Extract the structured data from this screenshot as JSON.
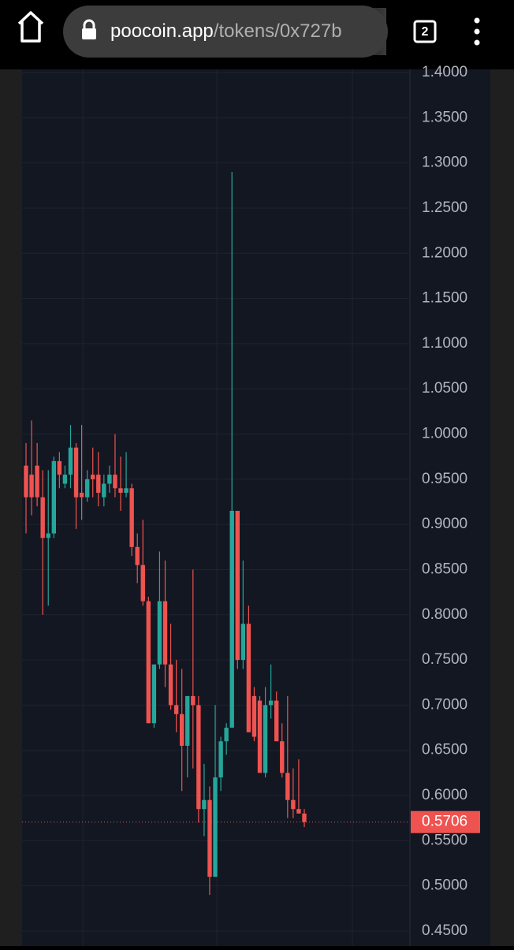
{
  "browser": {
    "url_host": "poocoin.app",
    "url_path": "/tokens/0x727b",
    "tab_count": "2"
  },
  "chart_data": {
    "type": "candlestick",
    "up_color": "#26a69a",
    "down_color": "#ef5350",
    "open": [
      0.965,
      0.955,
      0.965,
      0.93,
      0.885,
      0.89,
      0.97,
      0.945,
      0.955,
      0.985,
      0.935,
      0.93,
      0.955,
      0.955,
      0.93,
      0.945,
      0.955,
      0.94,
      0.935,
      0.94,
      0.875,
      0.855,
      0.815,
      0.68,
      0.745,
      0.815,
      0.745,
      0.7,
      0.69,
      0.655,
      0.71,
      0.7,
      0.585,
      0.595,
      0.51,
      0.62,
      0.66,
      0.675,
      0.915,
      0.75,
      0.79,
      0.71,
      0.705,
      0.625,
      0.7,
      0.705,
      0.66,
      0.625,
      0.595,
      0.585,
      0.58
    ],
    "high": [
      0.99,
      1.015,
      0.99,
      0.96,
      0.96,
      0.975,
      0.98,
      0.965,
      1.01,
      0.99,
      1.01,
      0.96,
      0.985,
      0.98,
      0.955,
      0.965,
      1.0,
      0.975,
      0.98,
      0.945,
      0.89,
      0.905,
      0.82,
      0.745,
      0.87,
      0.86,
      0.79,
      0.75,
      0.74,
      0.71,
      0.85,
      0.71,
      0.635,
      0.61,
      0.7,
      0.665,
      0.68,
      1.29,
      0.915,
      0.86,
      0.81,
      0.72,
      0.71,
      0.72,
      0.745,
      0.715,
      0.68,
      0.71,
      0.63,
      0.64,
      0.585
    ],
    "low": [
      0.89,
      0.91,
      0.92,
      0.8,
      0.81,
      0.885,
      0.94,
      0.94,
      0.94,
      0.895,
      0.905,
      0.925,
      0.93,
      0.92,
      0.92,
      0.935,
      0.93,
      0.915,
      0.93,
      0.865,
      0.835,
      0.81,
      0.68,
      0.675,
      0.74,
      0.72,
      0.695,
      0.67,
      0.605,
      0.62,
      0.63,
      0.57,
      0.555,
      0.49,
      0.51,
      0.605,
      0.645,
      0.675,
      0.74,
      0.74,
      0.67,
      0.66,
      0.625,
      0.62,
      0.685,
      0.66,
      0.62,
      0.575,
      0.575,
      0.58,
      0.565
    ],
    "close": [
      0.93,
      0.93,
      0.93,
      0.885,
      0.89,
      0.97,
      0.955,
      0.955,
      0.985,
      0.93,
      0.93,
      0.95,
      0.95,
      0.935,
      0.945,
      0.955,
      0.94,
      0.935,
      0.94,
      0.875,
      0.855,
      0.815,
      0.68,
      0.745,
      0.815,
      0.745,
      0.7,
      0.69,
      0.655,
      0.71,
      0.7,
      0.585,
      0.595,
      0.51,
      0.62,
      0.66,
      0.675,
      0.915,
      0.75,
      0.79,
      0.67,
      0.665,
      0.625,
      0.7,
      0.705,
      0.66,
      0.625,
      0.595,
      0.585,
      0.58,
      0.5706
    ],
    "last_price": 0.5706,
    "ylim": [
      0.436,
      1.4035
    ],
    "yticks": [
      {
        "value": 0.45,
        "label": "0.4500"
      },
      {
        "value": 0.5,
        "label": "0.5000"
      },
      {
        "value": 0.55,
        "label": "0.5500"
      },
      {
        "value": 0.6,
        "label": "0.6000"
      },
      {
        "value": 0.65,
        "label": "0.6500"
      },
      {
        "value": 0.7,
        "label": "0.7000"
      },
      {
        "value": 0.75,
        "label": "0.7500"
      },
      {
        "value": 0.8,
        "label": "0.8000"
      },
      {
        "value": 0.85,
        "label": "0.8500"
      },
      {
        "value": 0.9,
        "label": "0.9000"
      },
      {
        "value": 0.95,
        "label": "0.9500"
      },
      {
        "value": 1.0,
        "label": "1.0000"
      },
      {
        "value": 1.05,
        "label": "1.0500"
      },
      {
        "value": 1.1,
        "label": "1.1000"
      },
      {
        "value": 1.15,
        "label": "1.1500"
      },
      {
        "value": 1.2,
        "label": "1.2000"
      },
      {
        "value": 1.25,
        "label": "1.2500"
      },
      {
        "value": 1.3,
        "label": "1.3000"
      },
      {
        "value": 1.35,
        "label": "1.3500"
      },
      {
        "value": 1.4,
        "label": "1.4000"
      }
    ],
    "grid": true
  }
}
